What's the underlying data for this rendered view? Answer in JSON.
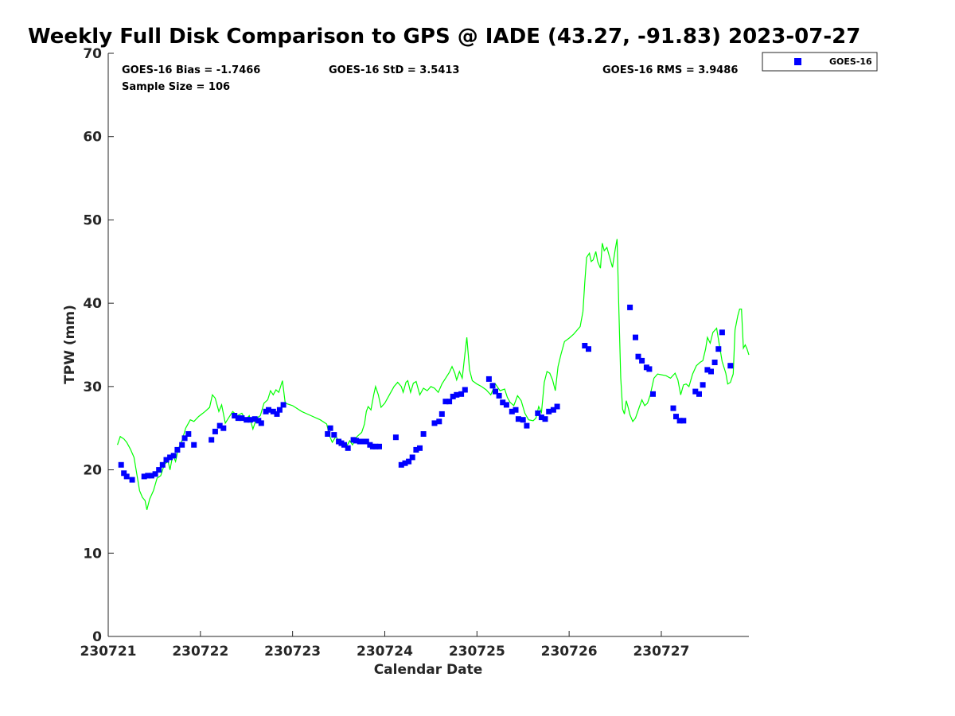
{
  "chart_data": {
    "type": "scatter",
    "title": "Weekly Full Disk Comparison to GPS @ IADE (43.27, -91.83) 2023-07-27",
    "xlabel": "Calendar Date",
    "ylabel": "TPW (mm)",
    "xlim": [
      0,
      6.95
    ],
    "ylim": [
      0,
      70
    ],
    "x_ticks": [
      {
        "value": 0,
        "label": "230721"
      },
      {
        "value": 1,
        "label": "230722"
      },
      {
        "value": 2,
        "label": "230723"
      },
      {
        "value": 3,
        "label": "230724"
      },
      {
        "value": 4,
        "label": "230725"
      },
      {
        "value": 5,
        "label": "230726"
      },
      {
        "value": 6,
        "label": "230727"
      }
    ],
    "y_ticks": [
      0,
      10,
      20,
      30,
      40,
      50,
      60,
      70
    ],
    "x_units": "days after 230721",
    "stats": {
      "bias": "GOES-16 Bias = -1.7466",
      "sample_size": "Sample Size = 106",
      "std": "GOES-16 StD = 3.5413",
      "rms": "GOES-16 RMS = 3.9486"
    },
    "legend": {
      "position": "outside-top-right",
      "entries": [
        {
          "label": "GOES-16",
          "color": "#0000ff",
          "marker": "square"
        }
      ]
    },
    "grid": false,
    "series": [
      {
        "name": "GOES-16",
        "kind": "scatter",
        "color": "#0000ff",
        "points": [
          [
            0.14,
            20.6
          ],
          [
            0.17,
            19.6
          ],
          [
            0.2,
            19.2
          ],
          [
            0.26,
            18.8
          ],
          [
            0.39,
            19.2
          ],
          [
            0.43,
            19.3
          ],
          [
            0.47,
            19.3
          ],
          [
            0.51,
            19.5
          ],
          [
            0.55,
            20.0
          ],
          [
            0.59,
            20.6
          ],
          [
            0.63,
            21.2
          ],
          [
            0.67,
            21.5
          ],
          [
            0.71,
            21.7
          ],
          [
            0.75,
            22.4
          ],
          [
            0.8,
            23.0
          ],
          [
            0.83,
            23.8
          ],
          [
            0.87,
            24.3
          ],
          [
            0.93,
            23.0
          ],
          [
            1.12,
            23.6
          ],
          [
            1.16,
            24.6
          ],
          [
            1.21,
            25.3
          ],
          [
            1.25,
            25.0
          ],
          [
            1.37,
            26.5
          ],
          [
            1.41,
            26.2
          ],
          [
            1.45,
            26.2
          ],
          [
            1.5,
            26.0
          ],
          [
            1.54,
            26.0
          ],
          [
            1.59,
            26.1
          ],
          [
            1.63,
            25.9
          ],
          [
            1.66,
            25.6
          ],
          [
            1.71,
            27.0
          ],
          [
            1.74,
            27.2
          ],
          [
            1.79,
            27.0
          ],
          [
            1.83,
            26.7
          ],
          [
            1.86,
            27.2
          ],
          [
            1.9,
            27.8
          ],
          [
            2.38,
            24.3
          ],
          [
            2.41,
            25.0
          ],
          [
            2.45,
            24.2
          ],
          [
            2.5,
            23.4
          ],
          [
            2.53,
            23.2
          ],
          [
            2.56,
            23.0
          ],
          [
            2.6,
            22.6
          ],
          [
            2.66,
            23.6
          ],
          [
            2.69,
            23.5
          ],
          [
            2.73,
            23.4
          ],
          [
            2.77,
            23.4
          ],
          [
            2.8,
            23.4
          ],
          [
            2.84,
            23.0
          ],
          [
            2.87,
            22.8
          ],
          [
            2.9,
            22.8
          ],
          [
            2.94,
            22.8
          ],
          [
            3.12,
            23.9
          ],
          [
            3.18,
            20.6
          ],
          [
            3.22,
            20.8
          ],
          [
            3.26,
            21.0
          ],
          [
            3.3,
            21.5
          ],
          [
            3.34,
            22.4
          ],
          [
            3.38,
            22.6
          ],
          [
            3.42,
            24.3
          ],
          [
            3.54,
            25.6
          ],
          [
            3.59,
            25.8
          ],
          [
            3.62,
            26.7
          ],
          [
            3.66,
            28.2
          ],
          [
            3.7,
            28.2
          ],
          [
            3.74,
            28.8
          ],
          [
            3.78,
            29.0
          ],
          [
            3.83,
            29.1
          ],
          [
            3.87,
            29.6
          ],
          [
            4.13,
            30.9
          ],
          [
            4.17,
            30.1
          ],
          [
            4.2,
            29.4
          ],
          [
            4.24,
            28.9
          ],
          [
            4.28,
            28.1
          ],
          [
            4.32,
            27.8
          ],
          [
            4.38,
            27.0
          ],
          [
            4.42,
            27.2
          ],
          [
            4.45,
            26.1
          ],
          [
            4.5,
            26.0
          ],
          [
            4.54,
            25.3
          ],
          [
            4.66,
            26.8
          ],
          [
            4.7,
            26.3
          ],
          [
            4.74,
            26.1
          ],
          [
            4.78,
            27.0
          ],
          [
            4.83,
            27.2
          ],
          [
            4.87,
            27.6
          ],
          [
            5.17,
            34.9
          ],
          [
            5.21,
            34.5
          ],
          [
            5.66,
            39.5
          ],
          [
            5.72,
            35.9
          ],
          [
            5.75,
            33.6
          ],
          [
            5.79,
            33.1
          ],
          [
            5.84,
            32.3
          ],
          [
            5.87,
            32.1
          ],
          [
            5.91,
            29.1
          ],
          [
            6.13,
            27.4
          ],
          [
            6.16,
            26.4
          ],
          [
            6.2,
            25.9
          ],
          [
            6.24,
            25.9
          ],
          [
            6.37,
            29.4
          ],
          [
            6.41,
            29.1
          ],
          [
            6.45,
            30.2
          ],
          [
            6.5,
            32.0
          ],
          [
            6.54,
            31.8
          ],
          [
            6.58,
            32.9
          ],
          [
            6.62,
            34.5
          ],
          [
            6.66,
            36.5
          ],
          [
            6.75,
            32.5
          ]
        ]
      },
      {
        "name": "",
        "kind": "line",
        "color": "#00ff00",
        "points": [
          [
            0.1,
            23.0
          ],
          [
            0.13,
            24.0
          ],
          [
            0.17,
            23.7
          ],
          [
            0.2,
            23.3
          ],
          [
            0.24,
            22.5
          ],
          [
            0.28,
            21.5
          ],
          [
            0.31,
            19.5
          ],
          [
            0.34,
            17.5
          ],
          [
            0.37,
            16.7
          ],
          [
            0.4,
            16.3
          ],
          [
            0.42,
            15.2
          ],
          [
            0.45,
            16.5
          ],
          [
            0.49,
            17.5
          ],
          [
            0.53,
            19.0
          ],
          [
            0.57,
            19.3
          ],
          [
            0.61,
            20.7
          ],
          [
            0.65,
            21.0
          ],
          [
            0.67,
            20.0
          ],
          [
            0.7,
            21.8
          ],
          [
            0.73,
            21.0
          ],
          [
            0.76,
            22.5
          ],
          [
            0.8,
            23.5
          ],
          [
            0.84,
            25.0
          ],
          [
            0.89,
            26.0
          ],
          [
            0.93,
            25.8
          ],
          [
            0.98,
            26.4
          ],
          [
            1.05,
            27.0
          ],
          [
            1.1,
            27.5
          ],
          [
            1.13,
            29.0
          ],
          [
            1.16,
            28.6
          ],
          [
            1.2,
            27.0
          ],
          [
            1.23,
            27.8
          ],
          [
            1.27,
            25.6
          ],
          [
            1.31,
            26.3
          ],
          [
            1.35,
            27.0
          ],
          [
            1.4,
            26.5
          ],
          [
            1.45,
            26.8
          ],
          [
            1.49,
            26.0
          ],
          [
            1.53,
            26.5
          ],
          [
            1.57,
            24.9
          ],
          [
            1.61,
            26.2
          ],
          [
            1.65,
            26.5
          ],
          [
            1.69,
            28.0
          ],
          [
            1.73,
            28.4
          ],
          [
            1.76,
            29.5
          ],
          [
            1.79,
            29.0
          ],
          [
            1.82,
            29.6
          ],
          [
            1.85,
            29.3
          ],
          [
            1.89,
            30.7
          ],
          [
            1.92,
            28.0
          ],
          [
            2.0,
            27.7
          ],
          [
            2.1,
            27.0
          ],
          [
            2.2,
            26.5
          ],
          [
            2.3,
            26.0
          ],
          [
            2.37,
            25.5
          ],
          [
            2.4,
            24.1
          ],
          [
            2.43,
            23.3
          ],
          [
            2.47,
            24.0
          ],
          [
            2.5,
            23.5
          ],
          [
            2.54,
            23.3
          ],
          [
            2.58,
            22.7
          ],
          [
            2.62,
            23.5
          ],
          [
            2.65,
            23.0
          ],
          [
            2.7,
            24.0
          ],
          [
            2.75,
            24.5
          ],
          [
            2.78,
            25.5
          ],
          [
            2.8,
            27.0
          ],
          [
            2.82,
            27.6
          ],
          [
            2.85,
            27.2
          ],
          [
            2.88,
            29.0
          ],
          [
            2.9,
            30.0
          ],
          [
            2.93,
            29.0
          ],
          [
            2.96,
            27.5
          ],
          [
            3.0,
            28.0
          ],
          [
            3.05,
            29.0
          ],
          [
            3.1,
            30.0
          ],
          [
            3.14,
            30.5
          ],
          [
            3.18,
            30.0
          ],
          [
            3.2,
            29.3
          ],
          [
            3.23,
            30.5
          ],
          [
            3.25,
            30.7
          ],
          [
            3.28,
            29.3
          ],
          [
            3.31,
            30.4
          ],
          [
            3.34,
            30.6
          ],
          [
            3.38,
            29.0
          ],
          [
            3.42,
            29.8
          ],
          [
            3.46,
            29.5
          ],
          [
            3.5,
            30.0
          ],
          [
            3.54,
            29.8
          ],
          [
            3.58,
            29.3
          ],
          [
            3.62,
            30.3
          ],
          [
            3.66,
            31.0
          ],
          [
            3.7,
            31.7
          ],
          [
            3.73,
            32.4
          ],
          [
            3.76,
            31.6
          ],
          [
            3.78,
            30.8
          ],
          [
            3.81,
            31.8
          ],
          [
            3.84,
            31.0
          ],
          [
            3.87,
            34.0
          ],
          [
            3.89,
            35.9
          ],
          [
            3.92,
            32.0
          ],
          [
            3.95,
            30.7
          ],
          [
            4.0,
            30.3
          ],
          [
            4.05,
            30.0
          ],
          [
            4.1,
            29.6
          ],
          [
            4.15,
            29.0
          ],
          [
            4.2,
            30.3
          ],
          [
            4.25,
            29.5
          ],
          [
            4.3,
            29.7
          ],
          [
            4.33,
            28.7
          ],
          [
            4.36,
            28.1
          ],
          [
            4.4,
            27.7
          ],
          [
            4.44,
            28.9
          ],
          [
            4.48,
            28.3
          ],
          [
            4.52,
            26.8
          ],
          [
            4.56,
            26.0
          ],
          [
            4.61,
            25.9
          ],
          [
            4.64,
            26.2
          ],
          [
            4.67,
            27.6
          ],
          [
            4.7,
            26.9
          ],
          [
            4.73,
            30.5
          ],
          [
            4.76,
            31.8
          ],
          [
            4.79,
            31.6
          ],
          [
            4.82,
            30.8
          ],
          [
            4.85,
            29.5
          ],
          [
            4.88,
            32.4
          ],
          [
            4.91,
            33.8
          ],
          [
            4.95,
            35.4
          ],
          [
            5.0,
            35.8
          ],
          [
            5.05,
            36.3
          ],
          [
            5.12,
            37.2
          ],
          [
            5.15,
            39.0
          ],
          [
            5.17,
            42.5
          ],
          [
            5.19,
            45.5
          ],
          [
            5.22,
            46.0
          ],
          [
            5.24,
            45.0
          ],
          [
            5.26,
            45.2
          ],
          [
            5.29,
            46.2
          ],
          [
            5.31,
            45.0
          ],
          [
            5.34,
            44.2
          ],
          [
            5.36,
            47.2
          ],
          [
            5.38,
            46.3
          ],
          [
            5.41,
            46.7
          ],
          [
            5.44,
            45.5
          ],
          [
            5.47,
            44.3
          ],
          [
            5.5,
            46.5
          ],
          [
            5.52,
            47.7
          ],
          [
            5.54,
            39.0
          ],
          [
            5.56,
            31.0
          ],
          [
            5.58,
            27.3
          ],
          [
            5.6,
            26.7
          ],
          [
            5.62,
            28.3
          ],
          [
            5.64,
            27.5
          ],
          [
            5.66,
            26.6
          ],
          [
            5.69,
            25.8
          ],
          [
            5.72,
            26.2
          ],
          [
            5.76,
            27.5
          ],
          [
            5.79,
            28.4
          ],
          [
            5.82,
            27.7
          ],
          [
            5.85,
            28.0
          ],
          [
            5.88,
            29.0
          ],
          [
            5.92,
            31.0
          ],
          [
            5.96,
            31.5
          ],
          [
            6.05,
            31.3
          ],
          [
            6.1,
            31.0
          ],
          [
            6.15,
            31.6
          ],
          [
            6.18,
            30.8
          ],
          [
            6.21,
            29.0
          ],
          [
            6.24,
            30.2
          ],
          [
            6.27,
            30.3
          ],
          [
            6.3,
            30.0
          ],
          [
            6.34,
            31.5
          ],
          [
            6.38,
            32.5
          ],
          [
            6.42,
            32.9
          ],
          [
            6.45,
            33.1
          ],
          [
            6.48,
            34.5
          ],
          [
            6.5,
            35.9
          ],
          [
            6.53,
            35.2
          ],
          [
            6.56,
            36.5
          ],
          [
            6.6,
            37.0
          ],
          [
            6.63,
            35.0
          ],
          [
            6.66,
            33.0
          ],
          [
            6.7,
            31.6
          ],
          [
            6.72,
            30.3
          ],
          [
            6.75,
            30.5
          ],
          [
            6.78,
            31.5
          ],
          [
            6.8,
            36.8
          ],
          [
            6.83,
            38.5
          ],
          [
            6.85,
            39.3
          ],
          [
            6.87,
            39.3
          ],
          [
            6.89,
            34.6
          ],
          [
            6.91,
            35.0
          ],
          [
            6.93,
            34.5
          ],
          [
            6.95,
            33.8
          ]
        ]
      }
    ]
  }
}
